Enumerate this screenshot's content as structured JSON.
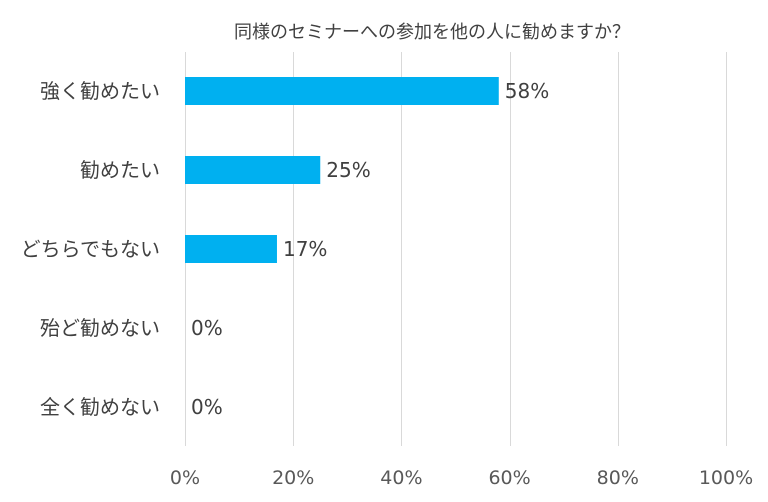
{
  "chart_data": {
    "type": "bar",
    "orientation": "horizontal",
    "title": "同様のセミナーへの参加を他の人に勧めますか？",
    "categories": [
      "強く勧めたい",
      "勧めたい",
      "どちらでもない",
      "殆ど勧めない",
      "全く勧めない"
    ],
    "values": [
      58,
      25,
      17,
      0,
      0
    ],
    "data_labels": [
      "58%",
      "25%",
      "17%",
      "0%",
      "0%"
    ],
    "xlim": [
      0,
      100
    ],
    "x_ticks": [
      0,
      20,
      40,
      60,
      80,
      100
    ],
    "x_tick_labels": [
      "0%",
      "20%",
      "40%",
      "60%",
      "80%",
      "100%"
    ],
    "xlabel": "",
    "ylabel": "",
    "grid": "vertical",
    "legend": "none",
    "bar_color": "#00b0f0"
  }
}
